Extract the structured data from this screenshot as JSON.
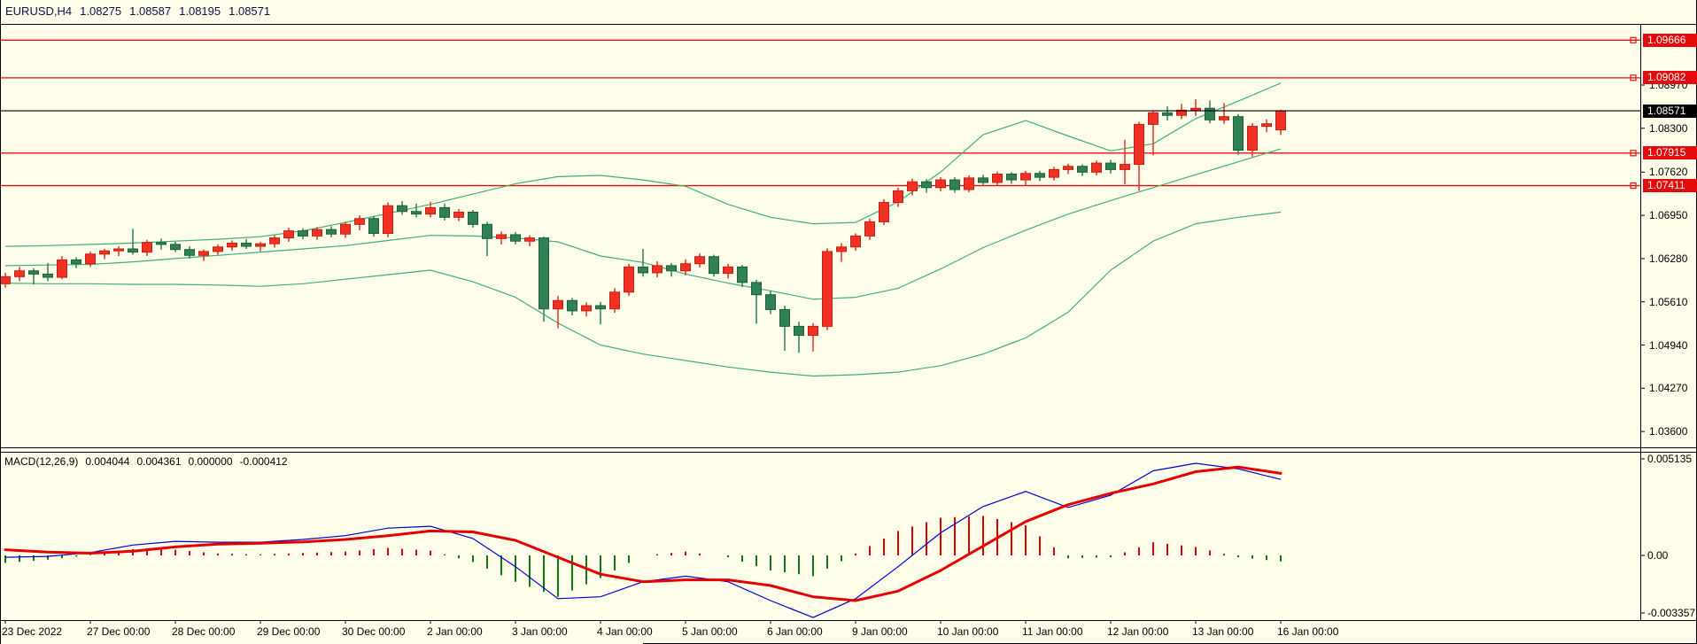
{
  "header": {
    "symbol_period": "EURUSD,H4",
    "open": "1.08275",
    "high": "1.08587",
    "low": "1.08195",
    "close": "1.08571"
  },
  "colors": {
    "background": "#fdfdea",
    "bull": "#ef3224",
    "bull_border": "#c22213",
    "bear": "#2f8054",
    "bear_border": "#1e5e3c",
    "bollinger": "#3fae7c",
    "level_line": "#e60f0f",
    "current_line": "#000000",
    "badge_red": "#e30b0b",
    "badge_black": "#000000",
    "header_text": "#10104f",
    "axis_text": "#000000",
    "macd_line": "#0000cc",
    "signal_line": "#e60000",
    "hist_pos": "#dd0000",
    "hist_neg": "#0b7d0b",
    "frame": "#000000"
  },
  "chart_data": {
    "type": "candlestick",
    "title": "EURUSD,H4",
    "symbol": "EURUSD",
    "timeframe": "H4",
    "legend_position": "none",
    "grid": false,
    "y_axis": {
      "side": "right",
      "ticks": [
        {
          "label": "1.08970",
          "value": 1.0897
        },
        {
          "label": "1.08300",
          "value": 1.083
        },
        {
          "label": "1.07620",
          "value": 1.0762
        },
        {
          "label": "1.06950",
          "value": 1.0695
        },
        {
          "label": "1.06280",
          "value": 1.0628
        },
        {
          "label": "1.05610",
          "value": 1.0561
        },
        {
          "label": "1.04940",
          "value": 1.0494
        },
        {
          "label": "1.04270",
          "value": 1.0427
        },
        {
          "label": "1.03600",
          "value": 1.036
        }
      ],
      "range": [
        1.03345,
        1.09927
      ]
    },
    "x_axis": {
      "bars_per_day": 6,
      "labels": [
        {
          "label": "23 Dec 2022",
          "bar": 0
        },
        {
          "label": "27 Dec 00:00",
          "bar": 6
        },
        {
          "label": "28 Dec 00:00",
          "bar": 12
        },
        {
          "label": "29 Dec 00:00",
          "bar": 18
        },
        {
          "label": "30 Dec 00:00",
          "bar": 24
        },
        {
          "label": "2 Jan 00:00",
          "bar": 30
        },
        {
          "label": "3 Jan 00:00",
          "bar": 36
        },
        {
          "label": "4 Jan 00:00",
          "bar": 42
        },
        {
          "label": "5 Jan 00:00",
          "bar": 48
        },
        {
          "label": "6 Jan 00:00",
          "bar": 54
        },
        {
          "label": "9 Jan 00:00",
          "bar": 60
        },
        {
          "label": "10 Jan 00:00",
          "bar": 66
        },
        {
          "label": "11 Jan 00:00",
          "bar": 72
        },
        {
          "label": "12 Jan 00:00",
          "bar": 78
        },
        {
          "label": "13 Jan 00:00",
          "bar": 84
        },
        {
          "label": "16 Jan 00:00",
          "bar": 90
        }
      ]
    },
    "horizontal_lines": [
      {
        "label": "1.09666",
        "price": 1.09666,
        "style": "level"
      },
      {
        "label": "1.09082",
        "price": 1.09082,
        "style": "level"
      },
      {
        "label": "1.07915",
        "price": 1.07915,
        "style": "level"
      },
      {
        "label": "1.07411",
        "price": 1.07411,
        "style": "level"
      }
    ],
    "current_price_line": {
      "label": "1.08571",
      "price": 1.08571
    },
    "candles_format": "[open, high, low, close] per H4 bar, bullish drawn red, bearish drawn green",
    "candles": [
      [
        1.0589,
        1.0606,
        1.0583,
        1.06
      ],
      [
        1.06,
        1.0615,
        1.0593,
        1.0609
      ],
      [
        1.0609,
        1.0613,
        1.0588,
        1.0604
      ],
      [
        1.0604,
        1.0621,
        1.0593,
        1.0599
      ],
      [
        1.0599,
        1.0632,
        1.0596,
        1.0626
      ],
      [
        1.0626,
        1.063,
        1.0613,
        1.062
      ],
      [
        1.062,
        1.0639,
        1.0615,
        1.0635
      ],
      [
        1.0635,
        1.0643,
        1.0627,
        1.064
      ],
      [
        1.064,
        1.0647,
        1.0632,
        1.0643
      ],
      [
        1.0643,
        1.0674,
        1.0634,
        1.0638
      ],
      [
        1.0638,
        1.0657,
        1.0632,
        1.0653
      ],
      [
        1.0653,
        1.0659,
        1.0642,
        1.065
      ],
      [
        1.065,
        1.0654,
        1.0638,
        1.0642
      ],
      [
        1.0642,
        1.0647,
        1.0628,
        1.0633
      ],
      [
        1.0633,
        1.0642,
        1.0624,
        1.0639
      ],
      [
        1.0639,
        1.065,
        1.0634,
        1.0646
      ],
      [
        1.0646,
        1.0656,
        1.064,
        1.0652
      ],
      [
        1.0652,
        1.0658,
        1.0643,
        1.0647
      ],
      [
        1.0647,
        1.0654,
        1.0639,
        1.0651
      ],
      [
        1.0651,
        1.0664,
        1.0645,
        1.066
      ],
      [
        1.066,
        1.0676,
        1.0654,
        1.0671
      ],
      [
        1.0671,
        1.0675,
        1.0658,
        1.0663
      ],
      [
        1.0663,
        1.0677,
        1.0657,
        1.0673
      ],
      [
        1.0673,
        1.0678,
        1.0661,
        1.0666
      ],
      [
        1.0666,
        1.0685,
        1.066,
        1.0681
      ],
      [
        1.0681,
        1.0695,
        1.0672,
        1.069
      ],
      [
        1.069,
        1.0694,
        1.0662,
        1.0667
      ],
      [
        1.0667,
        1.0715,
        1.0661,
        1.071
      ],
      [
        1.071,
        1.0717,
        1.0696,
        1.0701
      ],
      [
        1.0701,
        1.0713,
        1.0692,
        1.0697
      ],
      [
        1.0697,
        1.0716,
        1.0692,
        1.0707
      ],
      [
        1.0707,
        1.0713,
        1.0687,
        1.0692
      ],
      [
        1.0692,
        1.0705,
        1.0686,
        1.07
      ],
      [
        1.07,
        1.0703,
        1.0676,
        1.0681
      ],
      [
        1.0681,
        1.0685,
        1.0632,
        1.0659
      ],
      [
        1.0659,
        1.067,
        1.065,
        1.0665
      ],
      [
        1.0665,
        1.0669,
        1.065,
        1.0655
      ],
      [
        1.0655,
        1.0664,
        1.0647,
        1.066
      ],
      [
        1.066,
        1.0662,
        1.053,
        1.055
      ],
      [
        1.055,
        1.057,
        1.052,
        1.0563
      ],
      [
        1.0563,
        1.0567,
        1.054,
        1.0547
      ],
      [
        1.0547,
        1.056,
        1.0538,
        1.0555
      ],
      [
        1.0555,
        1.0561,
        1.0526,
        1.055
      ],
      [
        1.055,
        1.0582,
        1.0544,
        1.0576
      ],
      [
        1.0576,
        1.062,
        1.057,
        1.0615
      ],
      [
        1.0615,
        1.0643,
        1.06,
        1.0606
      ],
      [
        1.0606,
        1.0624,
        1.0599,
        1.0617
      ],
      [
        1.0617,
        1.0621,
        1.06,
        1.0609
      ],
      [
        1.0609,
        1.0627,
        1.0602,
        1.062
      ],
      [
        1.062,
        1.0636,
        1.0614,
        1.0631
      ],
      [
        1.0631,
        1.0634,
        1.06,
        1.0605
      ],
      [
        1.0605,
        1.062,
        1.0597,
        1.0615
      ],
      [
        1.0615,
        1.0618,
        1.0584,
        1.0591
      ],
      [
        1.0591,
        1.0595,
        1.0527,
        1.0572
      ],
      [
        1.0572,
        1.0578,
        1.0542,
        1.0549
      ],
      [
        1.0549,
        1.0555,
        1.0485,
        1.0523
      ],
      [
        1.0523,
        1.053,
        1.0482,
        1.0509
      ],
      [
        1.0509,
        1.0528,
        1.0484,
        1.0523
      ],
      [
        1.0523,
        1.0644,
        1.0517,
        1.0639
      ],
      [
        1.0639,
        1.0652,
        1.0623,
        1.0646
      ],
      [
        1.0646,
        1.0667,
        1.064,
        1.0663
      ],
      [
        1.0663,
        1.069,
        1.0657,
        1.0685
      ],
      [
        1.0685,
        1.072,
        1.068,
        1.0715
      ],
      [
        1.0715,
        1.0738,
        1.0708,
        1.0733
      ],
      [
        1.0733,
        1.0752,
        1.0726,
        1.0747
      ],
      [
        1.0747,
        1.0751,
        1.073,
        1.0738
      ],
      [
        1.0738,
        1.0754,
        1.0732,
        1.075
      ],
      [
        1.075,
        1.0754,
        1.073,
        1.0735
      ],
      [
        1.0735,
        1.0757,
        1.0731,
        1.0753
      ],
      [
        1.0753,
        1.0758,
        1.074,
        1.0746
      ],
      [
        1.0746,
        1.0763,
        1.0741,
        1.0759
      ],
      [
        1.0759,
        1.0762,
        1.0744,
        1.075
      ],
      [
        1.075,
        1.0764,
        1.0742,
        1.076
      ],
      [
        1.076,
        1.0764,
        1.0748,
        1.0754
      ],
      [
        1.0754,
        1.077,
        1.0749,
        1.0766
      ],
      [
        1.0766,
        1.0775,
        1.0759,
        1.0771
      ],
      [
        1.0771,
        1.0774,
        1.0756,
        1.0762
      ],
      [
        1.0762,
        1.078,
        1.0757,
        1.0776
      ],
      [
        1.0776,
        1.0781,
        1.076,
        1.0766
      ],
      [
        1.0766,
        1.0812,
        1.0743,
        1.0774
      ],
      [
        1.0774,
        1.084,
        1.0733,
        1.0836
      ],
      [
        1.0836,
        1.0858,
        1.0788,
        1.0854
      ],
      [
        1.0854,
        1.0864,
        1.0842,
        1.085
      ],
      [
        1.085,
        1.0868,
        1.0844,
        1.0858
      ],
      [
        1.0858,
        1.0875,
        1.0849,
        1.0861
      ],
      [
        1.0861,
        1.0873,
        1.0838,
        1.0843
      ],
      [
        1.0843,
        1.0869,
        1.0837,
        1.0848
      ],
      [
        1.0848,
        1.0852,
        1.0789,
        1.0796
      ],
      [
        1.0796,
        1.0838,
        1.0786,
        1.0833
      ],
      [
        1.0833,
        1.0844,
        1.0824,
        1.0837
      ],
      [
        1.08275,
        1.08587,
        1.08195,
        1.08571
      ]
    ],
    "indicators": {
      "bollinger_bands": {
        "sample_every_bars": 3,
        "upper": [
          1.0647,
          1.0648,
          1.065,
          1.0652,
          1.0655,
          1.0658,
          1.0662,
          1.0671,
          1.0684,
          1.0698,
          1.0712,
          1.0728,
          1.0744,
          1.0755,
          1.0757,
          1.075,
          1.074,
          1.0712,
          1.0692,
          1.0682,
          1.0684,
          1.0716,
          1.0762,
          1.082,
          1.0842,
          1.0818,
          1.0795,
          1.0806,
          1.0845,
          1.0872,
          1.09
        ],
        "middle": [
          1.0617,
          1.0618,
          1.0619,
          1.0623,
          1.0628,
          1.0633,
          1.0638,
          1.0643,
          1.0648,
          1.0656,
          1.0664,
          1.0663,
          1.066,
          1.0654,
          1.0632,
          1.0622,
          1.0604,
          1.059,
          1.0578,
          1.0565,
          1.0568,
          1.0582,
          1.0612,
          1.0645,
          1.0672,
          1.0697,
          1.0718,
          1.0738,
          1.0758,
          1.0778,
          1.0798
        ],
        "lower": [
          1.059,
          1.0589,
          1.0589,
          1.0588,
          1.0588,
          1.0587,
          1.0585,
          1.0589,
          1.0596,
          1.0603,
          1.061,
          1.0592,
          1.0568,
          1.0528,
          1.0494,
          1.048,
          1.047,
          1.046,
          1.0452,
          1.0446,
          1.0448,
          1.0452,
          1.0462,
          1.048,
          1.0505,
          1.0545,
          1.061,
          1.0655,
          1.0682,
          1.0692,
          1.07
        ]
      },
      "macd": {
        "label": "MACD(12,26,9)",
        "values_text": [
          "0.004044",
          "0.004361",
          "0.000000",
          "-0.000412"
        ],
        "y_ticks": [
          {
            "label": "0.005135",
            "value": 0.005135
          },
          {
            "label": "0.00",
            "value": 0
          },
          {
            "label": "-0.003357",
            "value": -0.003357
          }
        ],
        "sample_every_bars": 3,
        "macd_line": [
          -0.0001,
          -5e-05,
          0.00015,
          0.00055,
          0.00075,
          0.0007,
          0.0007,
          0.00085,
          0.00105,
          0.00145,
          0.00155,
          0.0009,
          -0.0006,
          -0.0023,
          -0.0022,
          -0.0014,
          -0.0011,
          -0.0014,
          -0.0024,
          -0.0033,
          -0.0023,
          -0.0006,
          0.0012,
          0.0026,
          0.0034,
          0.00255,
          0.0032,
          0.0045,
          0.0049,
          0.0046,
          0.00404
        ],
        "signal_line": [
          0.0003,
          0.00018,
          0.00012,
          0.00022,
          0.00045,
          0.0006,
          0.00065,
          0.00072,
          0.00085,
          0.00105,
          0.0013,
          0.00125,
          0.0008,
          -0.0001,
          -0.001,
          -0.0014,
          -0.0013,
          -0.0013,
          -0.0016,
          -0.0022,
          -0.0024,
          -0.0019,
          -0.0008,
          0.0005,
          0.0018,
          0.0027,
          0.0033,
          0.0038,
          0.00445,
          0.0047,
          0.00436
        ],
        "histogram_rule": "macd_line minus signal_line, red when >= 0, green when < 0"
      }
    }
  }
}
